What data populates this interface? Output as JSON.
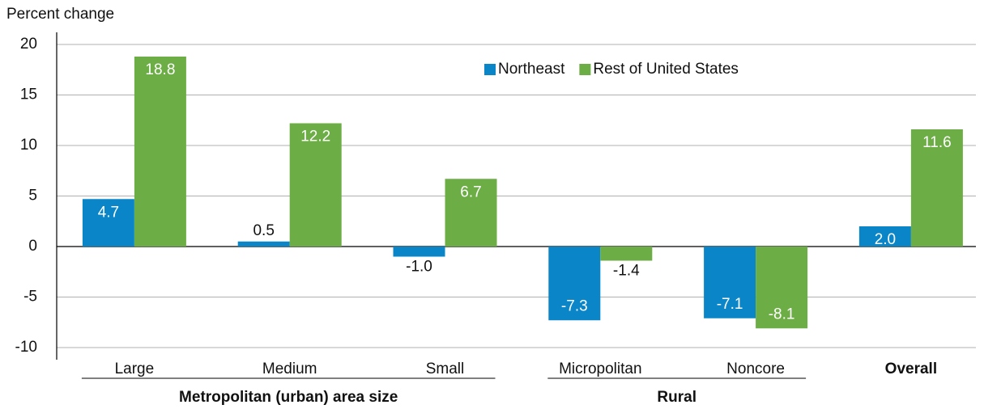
{
  "chart_data": {
    "type": "bar",
    "y_label": "Percent change",
    "categories": [
      "Large",
      "Medium",
      "Small",
      "Micropolitan",
      "Noncore",
      "Overall"
    ],
    "category_groups": [
      "Metropolitan (urban) area size",
      "Rural"
    ],
    "series": [
      {
        "name": "Northeast",
        "color": "#0a86c8",
        "values": [
          4.7,
          0.5,
          -1.0,
          -7.3,
          -7.1,
          2.0
        ],
        "value_labels": [
          "4.7",
          "0.5",
          "-1.0",
          "-7.3",
          "-7.1",
          "2.0"
        ]
      },
      {
        "name": "Rest of United States",
        "color": "#6cad45",
        "values": [
          18.8,
          12.2,
          6.7,
          -1.4,
          -8.1,
          11.6
        ],
        "value_labels": [
          "18.8",
          "12.2",
          "6.7",
          "-1.4",
          "-8.1",
          "11.6"
        ]
      }
    ],
    "ylim": [
      -10,
      20
    ],
    "yticks": [
      -10,
      -5,
      0,
      5,
      10,
      15,
      20
    ],
    "grid": true,
    "legend": "top"
  }
}
